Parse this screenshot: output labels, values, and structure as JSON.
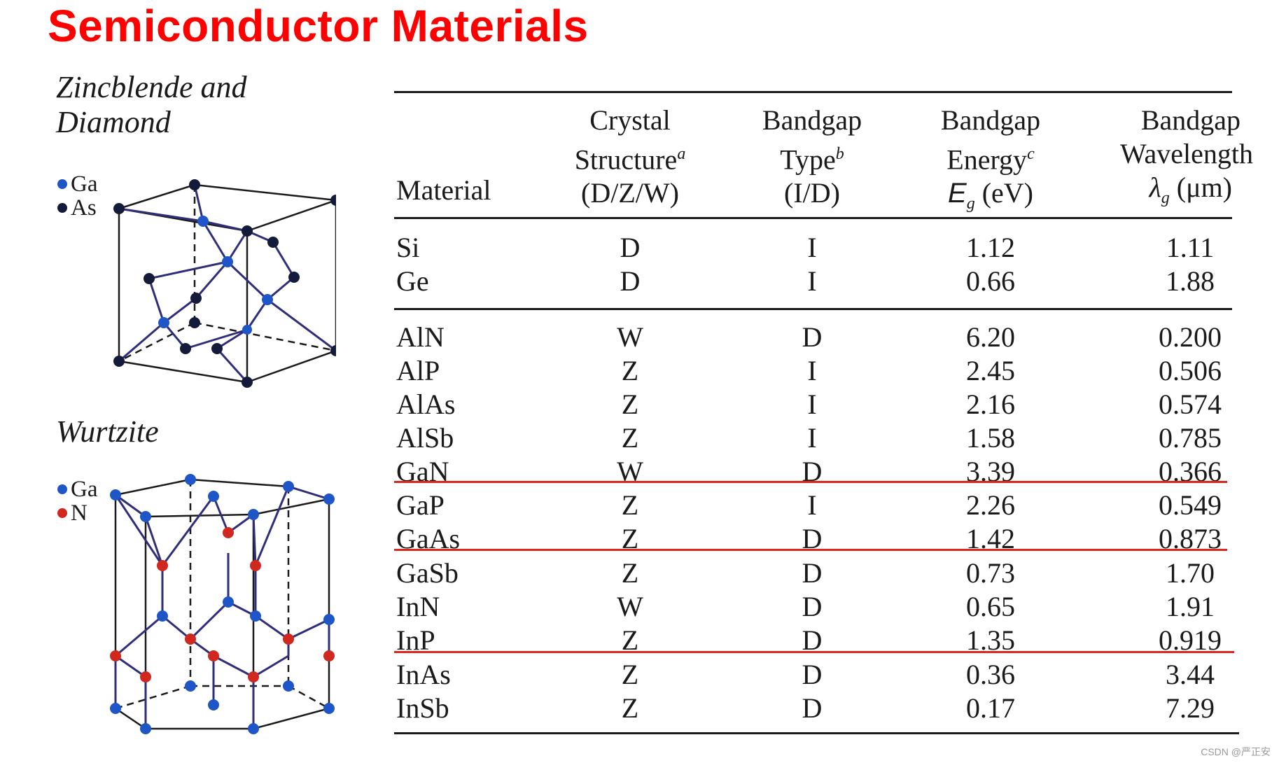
{
  "title": "Semiconductor Materials",
  "captions": {
    "zincblende": "Zincblende and Diamond",
    "zincblende_line1": "Zincblende and",
    "zincblende_line2": "Diamond",
    "wurtzite": "Wurtzite"
  },
  "legend_zinc": [
    {
      "label": "Ga",
      "color": "#1e56c8"
    },
    {
      "label": "As",
      "color": "#141a3a"
    }
  ],
  "legend_wurtz": [
    {
      "label": "Ga",
      "color": "#1e56c8"
    },
    {
      "label": "N",
      "color": "#d0281e"
    }
  ],
  "table": {
    "headers": {
      "material": "Material",
      "crystal": [
        "Crystal",
        "Structure",
        "a",
        "(D/Z/W)"
      ],
      "type": [
        "Bandgap",
        "Type",
        "b",
        "(I/D)"
      ],
      "energy": [
        "Bandgap",
        "Energy",
        "c",
        "E",
        "g",
        "(eV)"
      ],
      "wavelength": [
        "Bandgap",
        "Wavelength",
        "λ",
        "g",
        "(μm)"
      ]
    },
    "rows": [
      {
        "material": "Si",
        "structure": "D",
        "type": "I",
        "energy": "1.12",
        "wavelength": "1.11"
      },
      {
        "material": "Ge",
        "structure": "D",
        "type": "I",
        "energy": "0.66",
        "wavelength": "1.88"
      },
      {
        "material": "AlN",
        "structure": "W",
        "type": "D",
        "energy": "6.20",
        "wavelength": "0.200"
      },
      {
        "material": "AlP",
        "structure": "Z",
        "type": "I",
        "energy": "2.45",
        "wavelength": "0.506"
      },
      {
        "material": "AlAs",
        "structure": "Z",
        "type": "I",
        "energy": "2.16",
        "wavelength": "0.574"
      },
      {
        "material": "AlSb",
        "structure": "Z",
        "type": "I",
        "energy": "1.58",
        "wavelength": "0.785"
      },
      {
        "material": "GaN",
        "structure": "W",
        "type": "D",
        "energy": "3.39",
        "wavelength": "0.366"
      },
      {
        "material": "GaP",
        "structure": "Z",
        "type": "I",
        "energy": "2.26",
        "wavelength": "0.549"
      },
      {
        "material": "GaAs",
        "structure": "Z",
        "type": "D",
        "energy": "1.42",
        "wavelength": "0.873"
      },
      {
        "material": "GaSb",
        "structure": "Z",
        "type": "D",
        "energy": "0.73",
        "wavelength": "1.70"
      },
      {
        "material": "InN",
        "structure": "W",
        "type": "D",
        "energy": "0.65",
        "wavelength": "1.91"
      },
      {
        "material": "InP",
        "structure": "Z",
        "type": "D",
        "energy": "1.35",
        "wavelength": "0.919"
      },
      {
        "material": "InAs",
        "structure": "Z",
        "type": "D",
        "energy": "0.36",
        "wavelength": "3.44"
      },
      {
        "material": "InSb",
        "structure": "Z",
        "type": "D",
        "energy": "0.17",
        "wavelength": "7.29"
      }
    ]
  },
  "highlight_color": "#d8281e",
  "watermark": "CSDN @严正安"
}
